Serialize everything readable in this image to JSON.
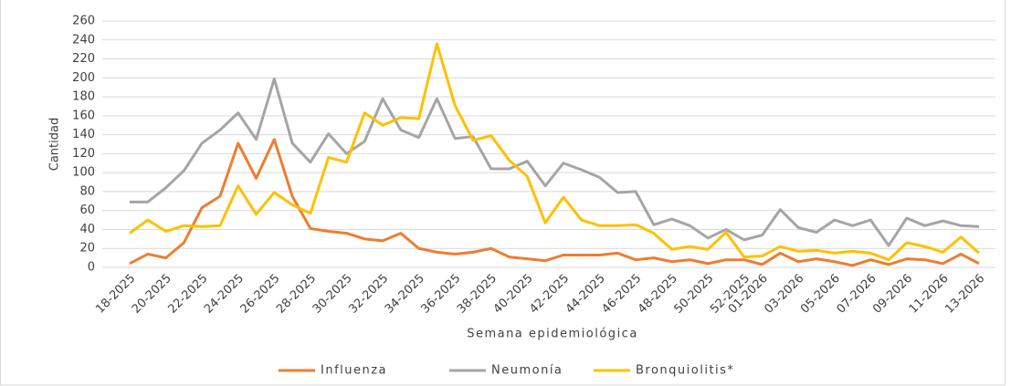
{
  "chart_data": {
    "type": "line",
    "x_label": "Semana epidemiológica",
    "y_label": "Cantidad",
    "categories": [
      "18-2025",
      null,
      "20-2025",
      null,
      "22-2025",
      null,
      "24-2025",
      null,
      "26-2025",
      null,
      "28-2025",
      null,
      "30-2025",
      null,
      "32-2025",
      null,
      "34-2025",
      null,
      "36-2025",
      null,
      "38-2025",
      null,
      "40-2025",
      null,
      "42-2025",
      null,
      "44-2025",
      null,
      "46-2025",
      null,
      "48-2025",
      null,
      "50-2025",
      null,
      "52-2025",
      "01-2026",
      null,
      "03-2026",
      null,
      "05-2026",
      null,
      "07-2026",
      null,
      "09-2026",
      null,
      "11-2026",
      null,
      "13-2026"
    ],
    "series": [
      {
        "name": "Influenza",
        "color": "#ed7d31",
        "values": [
          4,
          14,
          10,
          26,
          63,
          75,
          131,
          94,
          135,
          75,
          41,
          38,
          36,
          30,
          28,
          36,
          20,
          16,
          14,
          16,
          20,
          11,
          9,
          7,
          13,
          13,
          13,
          15,
          8,
          10,
          6,
          8,
          4,
          8,
          8,
          3,
          15,
          6,
          9,
          6,
          2,
          8,
          3,
          9,
          8,
          4,
          14,
          4
        ]
      },
      {
        "name": "Neumonía",
        "color": "#a5a5a5",
        "values": [
          69,
          69,
          84,
          102,
          131,
          145,
          163,
          135,
          199,
          131,
          111,
          141,
          120,
          133,
          178,
          145,
          137,
          178,
          136,
          138,
          104,
          104,
          112,
          86,
          110,
          103,
          95,
          79,
          80,
          45,
          51,
          44,
          31,
          40,
          29,
          34,
          61,
          42,
          37,
          50,
          44,
          50,
          23,
          52,
          44,
          49,
          44,
          43
        ]
      },
      {
        "name": "Bronquiolitis*",
        "color": "#ffc000",
        "values": [
          36,
          50,
          38,
          44,
          43,
          44,
          86,
          56,
          79,
          66,
          57,
          116,
          111,
          163,
          150,
          158,
          157,
          236,
          171,
          134,
          139,
          113,
          96,
          47,
          74,
          50,
          44,
          44,
          45,
          36,
          19,
          22,
          19,
          37,
          11,
          12,
          22,
          17,
          18,
          15,
          17,
          15,
          8,
          26,
          22,
          16,
          32,
          15
        ]
      }
    ],
    "ylim": [
      0,
      260
    ],
    "yticks": [
      0,
      20,
      40,
      60,
      80,
      100,
      120,
      140,
      160,
      180,
      200,
      220,
      240,
      260
    ],
    "grid": true,
    "legend": "bottom"
  }
}
